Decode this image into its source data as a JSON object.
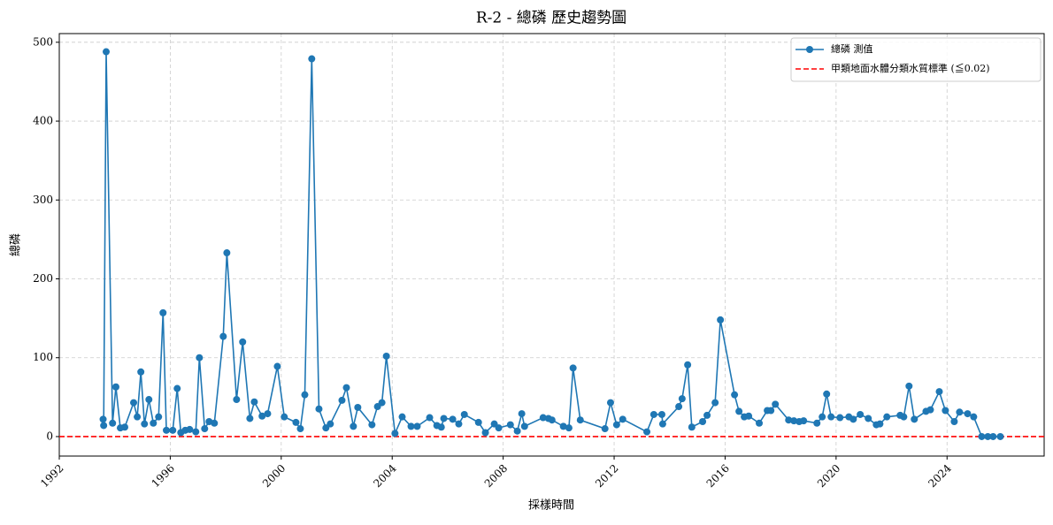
{
  "chart_data": {
    "type": "line",
    "title": "R-2 - 總磷 歷史趨勢圖",
    "x_label": "採樣時間",
    "y_label": "總磷",
    "x": [
      1993.58,
      1993.6,
      1993.69,
      1993.92,
      1994.04,
      1994.2,
      1994.36,
      1994.68,
      1994.81,
      1994.94,
      1995.07,
      1995.23,
      1995.39,
      1995.58,
      1995.74,
      1995.86,
      1996.09,
      1996.25,
      1996.38,
      1996.54,
      1996.7,
      1996.92,
      1997.05,
      1997.24,
      1997.4,
      1997.59,
      1997.91,
      1998.04,
      1998.39,
      1998.61,
      1998.87,
      1999.03,
      1999.31,
      1999.51,
      1999.86,
      2000.11,
      2000.53,
      2000.69,
      2000.85,
      2001.1,
      2001.36,
      2001.61,
      2001.77,
      2002.19,
      2002.35,
      2002.6,
      2002.76,
      2003.27,
      2003.47,
      2003.63,
      2003.79,
      2004.1,
      2004.36,
      2004.68,
      2004.9,
      2005.35,
      2005.61,
      2005.77,
      2005.86,
      2006.18,
      2006.4,
      2006.6,
      2007.11,
      2007.36,
      2007.68,
      2007.84,
      2008.26,
      2008.51,
      2008.67,
      2008.77,
      2009.44,
      2009.63,
      2009.76,
      2010.17,
      2010.37,
      2010.52,
      2010.78,
      2011.67,
      2011.87,
      2012.09,
      2012.31,
      2013.18,
      2013.43,
      2013.72,
      2013.75,
      2014.33,
      2014.45,
      2014.65,
      2014.8,
      2015.19,
      2015.35,
      2015.64,
      2015.83,
      2016.34,
      2016.5,
      2016.69,
      2016.85,
      2017.23,
      2017.52,
      2017.65,
      2017.81,
      2018.29,
      2018.48,
      2018.67,
      2018.83,
      2019.31,
      2019.5,
      2019.66,
      2019.82,
      2020.14,
      2020.46,
      2020.62,
      2020.87,
      2021.16,
      2021.45,
      2021.58,
      2021.83,
      2022.31,
      2022.44,
      2022.63,
      2022.82,
      2023.24,
      2023.4,
      2023.72,
      2023.94,
      2024.26,
      2024.45,
      2024.74,
      2024.96,
      2025.25,
      2025.47,
      2025.66,
      2025.92
    ],
    "series": [
      {
        "name": "總磷 測值",
        "color": "#1f77b4",
        "values": [
          22,
          14,
          488,
          17,
          63,
          11,
          12,
          43,
          25,
          82,
          16,
          47,
          17,
          25,
          157,
          8,
          8,
          61,
          5,
          8,
          9,
          6,
          100,
          10,
          19,
          17,
          127,
          233,
          47,
          120,
          23,
          44,
          26,
          29,
          89,
          25,
          18,
          10,
          53,
          479,
          35,
          11,
          16,
          46,
          62,
          13,
          37,
          15,
          38,
          43,
          102,
          4,
          25,
          13,
          13,
          24,
          14,
          12,
          23,
          22,
          16,
          28,
          18,
          5,
          16,
          11,
          15,
          7,
          29,
          13,
          24,
          23,
          21,
          13,
          11,
          87,
          21,
          10,
          43,
          15,
          22,
          6,
          28,
          28,
          16,
          38,
          48,
          91,
          12,
          19,
          27,
          43,
          148,
          53,
          32,
          25,
          26,
          17,
          33,
          33,
          41,
          21,
          20,
          19,
          20,
          17,
          25,
          54,
          25,
          24,
          25,
          22,
          28,
          23,
          15,
          16,
          25,
          27,
          25,
          64,
          22,
          32,
          34,
          57,
          33,
          19,
          31,
          29,
          25,
          0,
          0,
          0,
          0
        ]
      }
    ],
    "reference": {
      "name": "甲類地面水體分類水質標準 (≦0.02)",
      "value": 0.02,
      "color": "#ff0000"
    },
    "xlim": [
      1992,
      2027.5
    ],
    "xticks": [
      1992,
      1996,
      2000,
      2004,
      2008,
      2012,
      2016,
      2020,
      2024
    ],
    "ylim": [
      -24.7,
      511
    ],
    "yticks": [
      0,
      100,
      200,
      300,
      400,
      500
    ],
    "grid": true,
    "legend": "upper right"
  }
}
